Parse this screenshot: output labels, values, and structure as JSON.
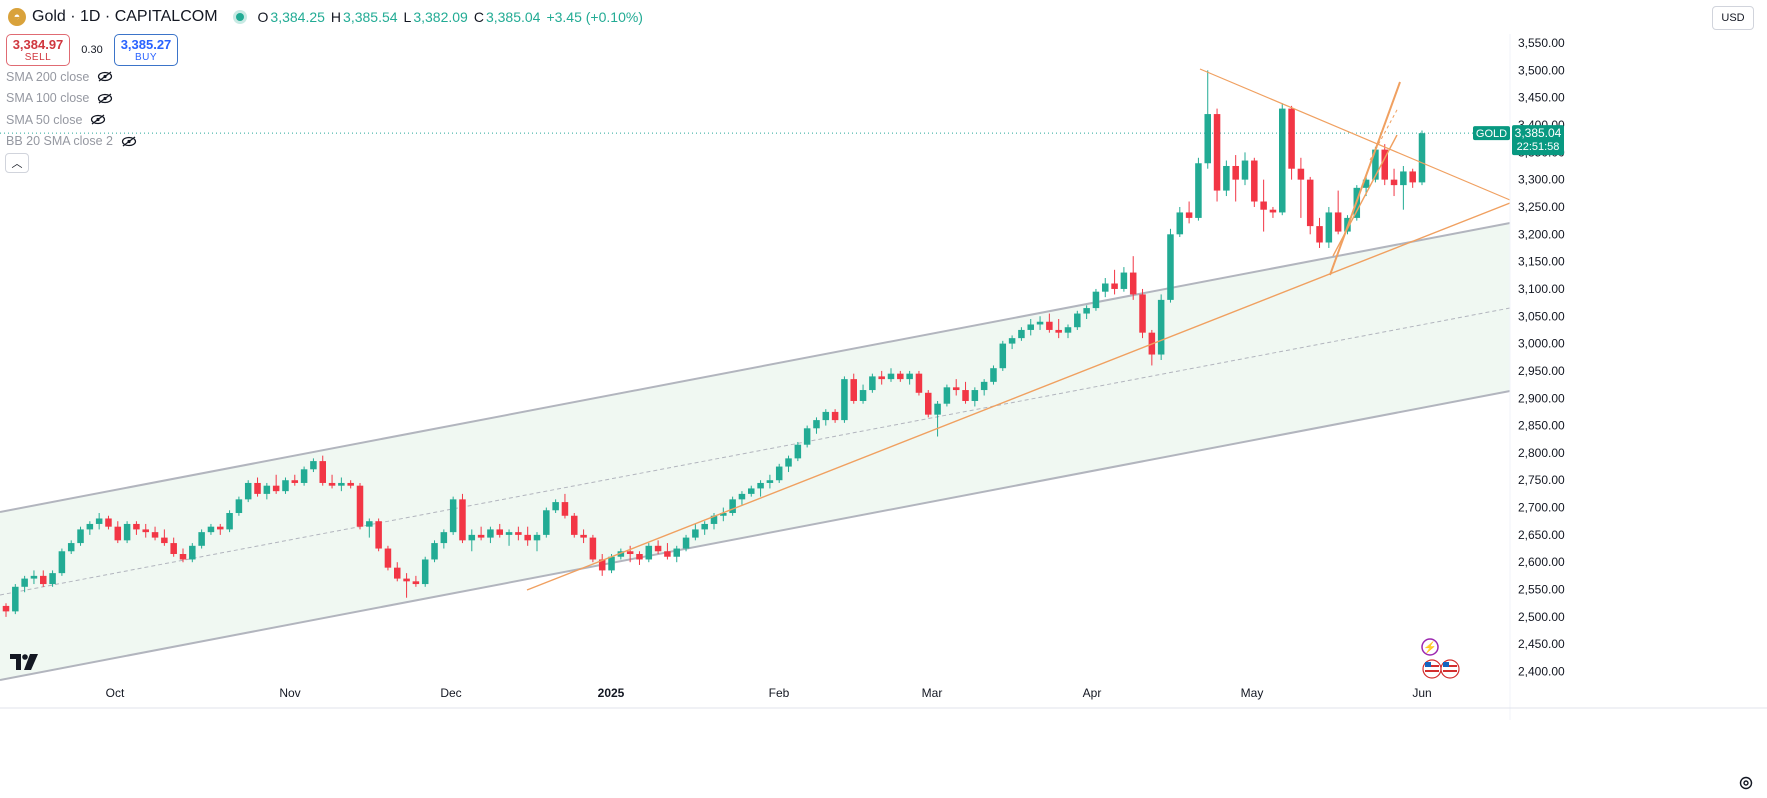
{
  "header": {
    "symbol": "Gold · 1D · CAPITALCOM",
    "logo_icon": "gold-coin-icon",
    "open_label": "O",
    "open": "3,384.25",
    "high_label": "H",
    "high": "3,385.54",
    "low_label": "L",
    "low": "3,382.09",
    "close_label": "C",
    "close": "3,385.04",
    "change": "+3.45 (+0.10%)"
  },
  "trade": {
    "sell_price": "3,384.97",
    "sell_label": "SELL",
    "spread": "0.30",
    "buy_price": "3,385.27",
    "buy_label": "BUY"
  },
  "indicators": [
    "SMA 200 close",
    "SMA 100 close",
    "SMA 50 close",
    "BB 20 SMA close 2"
  ],
  "currency": "USD",
  "price_tag": {
    "symbol": "GOLD",
    "price": "3,385.04",
    "countdown": "22:51:58"
  },
  "colors": {
    "up": "#22ab94",
    "down": "#f23645",
    "channel": "#b2b5be",
    "trend": "#f0a060",
    "tag": "#089981"
  },
  "chart_data": {
    "type": "candlestick",
    "title": "Gold · 1D · CAPITALCOM",
    "y_axis": {
      "min": 2375,
      "max": 3575,
      "ticks": [
        2400,
        2450,
        2500,
        2550,
        2600,
        2650,
        2700,
        2750,
        2800,
        2850,
        2900,
        2950,
        3000,
        3050,
        3100,
        3150,
        3200,
        3250,
        3300,
        3350,
        3400,
        3450,
        3500,
        3550
      ],
      "side": "right"
    },
    "x_axis": {
      "labels": [
        "Oct",
        "Nov",
        "Dec",
        "2025",
        "Feb",
        "Mar",
        "Apr",
        "May",
        "Jun"
      ]
    },
    "candles": [
      [
        2520,
        2525,
        2500,
        2510
      ],
      [
        2510,
        2560,
        2505,
        2555
      ],
      [
        2555,
        2575,
        2545,
        2570
      ],
      [
        2570,
        2585,
        2560,
        2575
      ],
      [
        2575,
        2585,
        2555,
        2560
      ],
      [
        2560,
        2585,
        2555,
        2580
      ],
      [
        2580,
        2625,
        2575,
        2620
      ],
      [
        2620,
        2640,
        2615,
        2635
      ],
      [
        2635,
        2665,
        2630,
        2660
      ],
      [
        2660,
        2675,
        2650,
        2670
      ],
      [
        2670,
        2690,
        2660,
        2680
      ],
      [
        2680,
        2685,
        2660,
        2665
      ],
      [
        2665,
        2675,
        2635,
        2640
      ],
      [
        2640,
        2675,
        2635,
        2670
      ],
      [
        2670,
        2675,
        2650,
        2660
      ],
      [
        2660,
        2670,
        2645,
        2655
      ],
      [
        2655,
        2665,
        2640,
        2645
      ],
      [
        2645,
        2660,
        2630,
        2635
      ],
      [
        2635,
        2645,
        2610,
        2615
      ],
      [
        2615,
        2625,
        2600,
        2605
      ],
      [
        2605,
        2635,
        2600,
        2630
      ],
      [
        2630,
        2660,
        2625,
        2655
      ],
      [
        2655,
        2670,
        2650,
        2665
      ],
      [
        2665,
        2670,
        2650,
        2660
      ],
      [
        2660,
        2695,
        2655,
        2690
      ],
      [
        2690,
        2720,
        2685,
        2715
      ],
      [
        2715,
        2750,
        2710,
        2745
      ],
      [
        2745,
        2755,
        2720,
        2725
      ],
      [
        2725,
        2745,
        2715,
        2740
      ],
      [
        2740,
        2760,
        2725,
        2730
      ],
      [
        2730,
        2755,
        2725,
        2750
      ],
      [
        2750,
        2760,
        2740,
        2745
      ],
      [
        2745,
        2775,
        2740,
        2770
      ],
      [
        2770,
        2790,
        2765,
        2785
      ],
      [
        2785,
        2795,
        2740,
        2745
      ],
      [
        2745,
        2760,
        2735,
        2740
      ],
      [
        2740,
        2755,
        2730,
        2745
      ],
      [
        2745,
        2750,
        2735,
        2740
      ],
      [
        2740,
        2745,
        2660,
        2665
      ],
      [
        2665,
        2680,
        2645,
        2675
      ],
      [
        2675,
        2680,
        2620,
        2625
      ],
      [
        2625,
        2630,
        2585,
        2590
      ],
      [
        2590,
        2600,
        2565,
        2570
      ],
      [
        2570,
        2580,
        2535,
        2565
      ],
      [
        2565,
        2575,
        2555,
        2560
      ],
      [
        2560,
        2610,
        2555,
        2605
      ],
      [
        2605,
        2640,
        2600,
        2635
      ],
      [
        2635,
        2660,
        2625,
        2655
      ],
      [
        2655,
        2720,
        2650,
        2715
      ],
      [
        2715,
        2725,
        2635,
        2640
      ],
      [
        2640,
        2660,
        2620,
        2650
      ],
      [
        2650,
        2665,
        2640,
        2645
      ],
      [
        2645,
        2665,
        2635,
        2660
      ],
      [
        2660,
        2670,
        2645,
        2650
      ],
      [
        2650,
        2660,
        2630,
        2655
      ],
      [
        2655,
        2665,
        2640,
        2650
      ],
      [
        2650,
        2665,
        2630,
        2640
      ],
      [
        2640,
        2655,
        2620,
        2650
      ],
      [
        2650,
        2700,
        2645,
        2695
      ],
      [
        2695,
        2715,
        2690,
        2710
      ],
      [
        2710,
        2725,
        2680,
        2685
      ],
      [
        2685,
        2690,
        2645,
        2650
      ],
      [
        2650,
        2660,
        2635,
        2645
      ],
      [
        2645,
        2650,
        2600,
        2605
      ],
      [
        2605,
        2615,
        2575,
        2585
      ],
      [
        2585,
        2615,
        2580,
        2610
      ],
      [
        2610,
        2625,
        2605,
        2620
      ],
      [
        2620,
        2630,
        2600,
        2615
      ],
      [
        2615,
        2620,
        2595,
        2605
      ],
      [
        2605,
        2635,
        2600,
        2630
      ],
      [
        2630,
        2640,
        2615,
        2620
      ],
      [
        2620,
        2635,
        2605,
        2610
      ],
      [
        2610,
        2630,
        2600,
        2625
      ],
      [
        2625,
        2650,
        2620,
        2645
      ],
      [
        2645,
        2670,
        2640,
        2660
      ],
      [
        2660,
        2675,
        2650,
        2670
      ],
      [
        2670,
        2690,
        2660,
        2685
      ],
      [
        2685,
        2700,
        2675,
        2690
      ],
      [
        2690,
        2720,
        2685,
        2715
      ],
      [
        2715,
        2730,
        2705,
        2725
      ],
      [
        2725,
        2740,
        2720,
        2735
      ],
      [
        2735,
        2750,
        2720,
        2745
      ],
      [
        2745,
        2760,
        2735,
        2750
      ],
      [
        2750,
        2780,
        2745,
        2775
      ],
      [
        2775,
        2795,
        2765,
        2790
      ],
      [
        2790,
        2820,
        2785,
        2815
      ],
      [
        2815,
        2850,
        2810,
        2845
      ],
      [
        2845,
        2865,
        2835,
        2860
      ],
      [
        2860,
        2880,
        2850,
        2875
      ],
      [
        2875,
        2880,
        2855,
        2860
      ],
      [
        2860,
        2940,
        2855,
        2935
      ],
      [
        2935,
        2945,
        2890,
        2895
      ],
      [
        2895,
        2925,
        2890,
        2915
      ],
      [
        2915,
        2945,
        2910,
        2940
      ],
      [
        2940,
        2950,
        2925,
        2935
      ],
      [
        2935,
        2955,
        2930,
        2945
      ],
      [
        2945,
        2950,
        2930,
        2935
      ],
      [
        2935,
        2950,
        2925,
        2945
      ],
      [
        2945,
        2950,
        2905,
        2910
      ],
      [
        2910,
        2915,
        2865,
        2870
      ],
      [
        2870,
        2895,
        2830,
        2890
      ],
      [
        2890,
        2925,
        2885,
        2920
      ],
      [
        2920,
        2935,
        2905,
        2915
      ],
      [
        2915,
        2930,
        2890,
        2895
      ],
      [
        2895,
        2920,
        2885,
        2915
      ],
      [
        2915,
        2935,
        2905,
        2930
      ],
      [
        2930,
        2960,
        2925,
        2955
      ],
      [
        2955,
        3005,
        2950,
        3000
      ],
      [
        3000,
        3015,
        2990,
        3010
      ],
      [
        3010,
        3030,
        3005,
        3025
      ],
      [
        3025,
        3045,
        3015,
        3035
      ],
      [
        3035,
        3050,
        3025,
        3040
      ],
      [
        3040,
        3055,
        3020,
        3025
      ],
      [
        3025,
        3045,
        3010,
        3020
      ],
      [
        3020,
        3035,
        3010,
        3030
      ],
      [
        3030,
        3060,
        3025,
        3055
      ],
      [
        3055,
        3070,
        3045,
        3065
      ],
      [
        3065,
        3100,
        3060,
        3095
      ],
      [
        3095,
        3120,
        3085,
        3110
      ],
      [
        3110,
        3135,
        3090,
        3100
      ],
      [
        3100,
        3140,
        3095,
        3130
      ],
      [
        3130,
        3160,
        3080,
        3090
      ],
      [
        3090,
        3100,
        3010,
        3020
      ],
      [
        3020,
        3025,
        2960,
        2980
      ],
      [
        2980,
        3090,
        2970,
        3080
      ],
      [
        3080,
        3210,
        3075,
        3200
      ],
      [
        3200,
        3250,
        3195,
        3240
      ],
      [
        3240,
        3260,
        3220,
        3230
      ],
      [
        3230,
        3340,
        3225,
        3330
      ],
      [
        3330,
        3500,
        3320,
        3420
      ],
      [
        3420,
        3430,
        3260,
        3280
      ],
      [
        3280,
        3335,
        3270,
        3325
      ],
      [
        3325,
        3345,
        3260,
        3300
      ],
      [
        3300,
        3350,
        3290,
        3335
      ],
      [
        3335,
        3340,
        3250,
        3260
      ],
      [
        3260,
        3300,
        3205,
        3245
      ],
      [
        3245,
        3250,
        3230,
        3240
      ],
      [
        3240,
        3440,
        3235,
        3430
      ],
      [
        3430,
        3435,
        3300,
        3320
      ],
      [
        3320,
        3340,
        3230,
        3300
      ],
      [
        3300,
        3305,
        3200,
        3215
      ],
      [
        3215,
        3230,
        3175,
        3185
      ],
      [
        3185,
        3250,
        3175,
        3240
      ],
      [
        3240,
        3280,
        3200,
        3205
      ],
      [
        3205,
        3235,
        3200,
        3230
      ],
      [
        3230,
        3290,
        3225,
        3285
      ],
      [
        3285,
        3310,
        3270,
        3300
      ],
      [
        3300,
        3360,
        3295,
        3355
      ],
      [
        3355,
        3365,
        3290,
        3300
      ],
      [
        3300,
        3320,
        3270,
        3290
      ],
      [
        3290,
        3325,
        3245,
        3315
      ],
      [
        3315,
        3320,
        3285,
        3295
      ],
      [
        3295,
        3390,
        3290,
        3385
      ]
    ]
  }
}
